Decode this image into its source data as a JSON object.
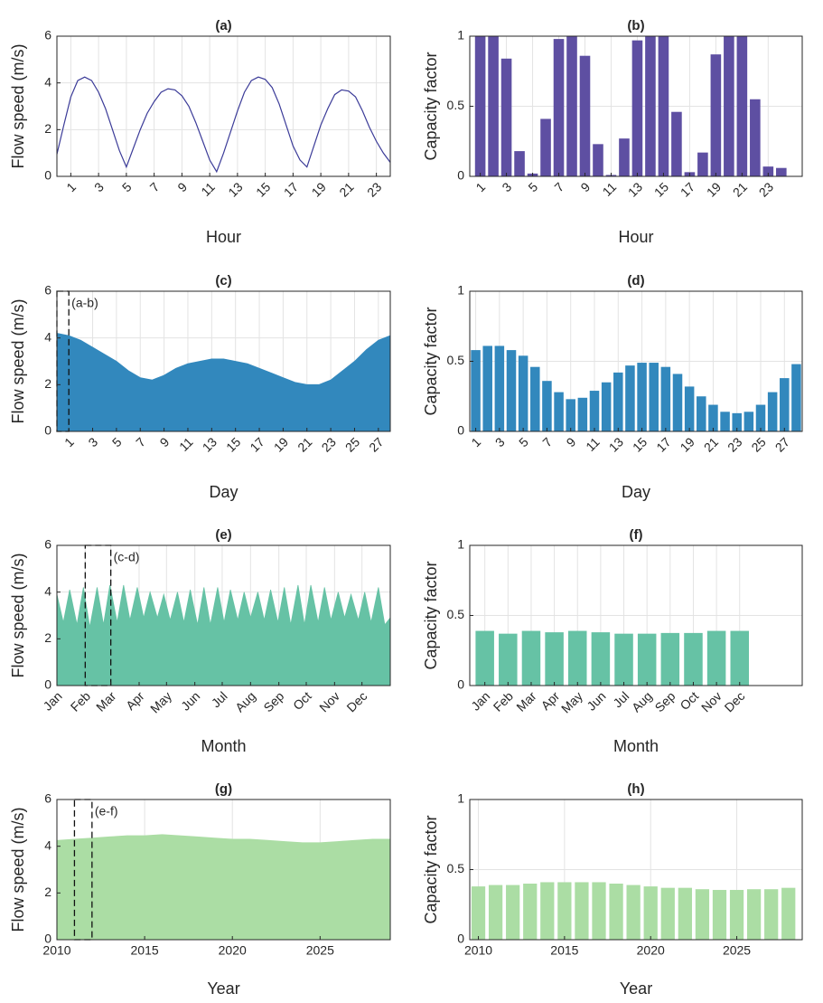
{
  "chart_data": [
    {
      "type": "line",
      "title": "(a)",
      "xlabel": "Hour",
      "ylabel": "Flow speed (m/s)",
      "color": "#3b3b98",
      "x": [
        0,
        0.5,
        1,
        1.5,
        2,
        2.5,
        3,
        3.5,
        4,
        4.5,
        5,
        5.5,
        6,
        6.5,
        7,
        7.5,
        8,
        8.5,
        9,
        9.5,
        10,
        10.5,
        11,
        11.5,
        12,
        12.5,
        13,
        13.5,
        14,
        14.5,
        15,
        15.5,
        16,
        16.5,
        17,
        17.5,
        18,
        18.5,
        19,
        19.5,
        20,
        20.5,
        21,
        21.5,
        22,
        22.5,
        23,
        23.5,
        24
      ],
      "values": [
        0.95,
        2.2,
        3.4,
        4.1,
        4.25,
        4.1,
        3.6,
        2.9,
        2.0,
        1.1,
        0.4,
        1.2,
        2.0,
        2.7,
        3.2,
        3.6,
        3.75,
        3.7,
        3.45,
        3.0,
        2.3,
        1.5,
        0.7,
        0.2,
        1.0,
        1.9,
        2.8,
        3.6,
        4.1,
        4.25,
        4.15,
        3.8,
        3.1,
        2.2,
        1.3,
        0.7,
        0.4,
        1.3,
        2.2,
        2.9,
        3.5,
        3.7,
        3.65,
        3.4,
        2.8,
        2.1,
        1.5,
        1.0,
        0.6
      ],
      "xlim": [
        0,
        24
      ],
      "ylim": [
        0,
        6
      ],
      "xticks": [
        1,
        3,
        5,
        7,
        9,
        11,
        13,
        15,
        17,
        19,
        21,
        23
      ],
      "yticks": [
        0,
        2,
        4,
        6
      ],
      "xtick_rotation": 45,
      "grid": true
    },
    {
      "type": "bar",
      "title": "(b)",
      "xlabel": "Hour",
      "ylabel": "Capacity factor",
      "color": "#5e4fa2",
      "x": [
        1,
        2,
        3,
        4,
        5,
        6,
        7,
        8,
        9,
        10,
        11,
        12,
        13,
        14,
        15,
        16,
        17,
        18,
        19,
        20,
        21,
        22,
        23,
        24
      ],
      "values": [
        1.0,
        1.0,
        0.84,
        0.18,
        0.02,
        0.41,
        0.98,
        1.0,
        0.86,
        0.23,
        0.01,
        0.27,
        0.97,
        1.0,
        1.0,
        0.46,
        0.03,
        0.17,
        0.87,
        1.0,
        1.0,
        0.55,
        0.07,
        0.06
      ],
      "xlim": [
        0.2,
        25.6
      ],
      "ylim": [
        0,
        1
      ],
      "xticks": [
        1,
        3,
        5,
        7,
        9,
        11,
        13,
        15,
        17,
        19,
        21,
        23
      ],
      "yticks": [
        0,
        0.5,
        1
      ],
      "xtick_rotation": 45,
      "grid": true
    },
    {
      "type": "area",
      "title": "(c)",
      "xlabel": "Day",
      "ylabel": "Flow speed (m/s)",
      "color": "#3288bd",
      "x": [
        0,
        1,
        2,
        3,
        4,
        5,
        6,
        7,
        8,
        9,
        10,
        11,
        12,
        13,
        14,
        15,
        16,
        17,
        18,
        19,
        20,
        21,
        22,
        23,
        24,
        25,
        26,
        27,
        28
      ],
      "values": [
        4.2,
        4.1,
        3.9,
        3.6,
        3.3,
        3.0,
        2.6,
        2.3,
        2.2,
        2.4,
        2.7,
        2.9,
        3.0,
        3.1,
        3.1,
        3.0,
        2.9,
        2.7,
        2.5,
        2.3,
        2.1,
        2.0,
        2.0,
        2.2,
        2.6,
        3.0,
        3.5,
        3.9,
        4.1
      ],
      "xlim": [
        0,
        28
      ],
      "ylim": [
        0,
        6
      ],
      "xticks": [
        1,
        3,
        5,
        7,
        9,
        11,
        13,
        15,
        17,
        19,
        21,
        23,
        25,
        27
      ],
      "yticks": [
        0,
        2,
        4,
        6
      ],
      "xtick_rotation": 45,
      "grid": true,
      "annotation": {
        "text": "(a-b)",
        "x": [
          0,
          1
        ]
      }
    },
    {
      "type": "bar",
      "title": "(d)",
      "xlabel": "Day",
      "ylabel": "Capacity factor",
      "color": "#3288bd",
      "x": [
        1,
        2,
        3,
        4,
        5,
        6,
        7,
        8,
        9,
        10,
        11,
        12,
        13,
        14,
        15,
        16,
        17,
        18,
        19,
        20,
        21,
        22,
        23,
        24,
        25,
        26,
        27,
        28
      ],
      "values": [
        0.58,
        0.61,
        0.61,
        0.58,
        0.54,
        0.46,
        0.36,
        0.28,
        0.23,
        0.24,
        0.29,
        0.35,
        0.42,
        0.47,
        0.49,
        0.49,
        0.46,
        0.41,
        0.32,
        0.25,
        0.19,
        0.14,
        0.13,
        0.14,
        0.19,
        0.28,
        0.38,
        0.48
      ],
      "xlim": [
        0.5,
        28.5
      ],
      "ylim": [
        0,
        1
      ],
      "xticks": [
        1,
        3,
        5,
        7,
        9,
        11,
        13,
        15,
        17,
        19,
        21,
        23,
        25,
        27
      ],
      "yticks": [
        0,
        0.5,
        1
      ],
      "xtick_rotation": 45,
      "grid": true
    },
    {
      "type": "area",
      "title": "(e)",
      "xlabel": "Month",
      "ylabel": "Flow speed (m/s)",
      "color": "#66c2a5",
      "x": [
        1,
        8,
        15,
        23,
        30,
        37,
        45,
        52,
        59,
        67,
        74,
        81,
        89,
        96,
        103,
        111,
        118,
        125,
        133,
        140,
        147,
        155,
        162,
        169,
        177,
        184,
        191,
        199,
        206,
        213,
        221,
        228,
        235,
        243,
        250,
        257,
        265,
        272,
        279,
        287,
        294,
        301,
        309,
        316,
        323,
        331,
        338,
        345,
        353,
        360,
        366
      ],
      "values": [
        3.9,
        2.7,
        4.1,
        2.6,
        4.2,
        2.5,
        4.2,
        2.6,
        4.3,
        2.7,
        4.3,
        2.8,
        4.2,
        2.9,
        4.0,
        2.9,
        3.9,
        2.8,
        4.0,
        2.7,
        4.1,
        2.6,
        4.2,
        2.6,
        4.2,
        2.7,
        4.1,
        2.8,
        4.0,
        2.9,
        4.0,
        2.8,
        4.1,
        2.7,
        4.2,
        2.6,
        4.3,
        2.6,
        4.3,
        2.7,
        4.2,
        2.8,
        4.0,
        2.9,
        3.9,
        2.8,
        4.0,
        2.7,
        4.2,
        2.6,
        2.9
      ],
      "xlim": [
        1,
        366
      ],
      "ylim": [
        0,
        6
      ],
      "xticks": [
        {
          "value": 1,
          "label": "Jan"
        },
        {
          "value": 32,
          "label": "Feb"
        },
        {
          "value": 60,
          "label": "Mar"
        },
        {
          "value": 91,
          "label": "Apr"
        },
        {
          "value": 121,
          "label": "May"
        },
        {
          "value": 152,
          "label": "Jun"
        },
        {
          "value": 182,
          "label": "Jul"
        },
        {
          "value": 213,
          "label": "Aug"
        },
        {
          "value": 244,
          "label": "Sep"
        },
        {
          "value": 274,
          "label": "Oct"
        },
        {
          "value": 305,
          "label": "Nov"
        },
        {
          "value": 335,
          "label": "Dec"
        }
      ],
      "yticks": [
        0,
        2,
        4,
        6
      ],
      "xtick_rotation": 45,
      "grid": true,
      "annotation": {
        "text": "(c-d)",
        "x": [
          32,
          60
        ]
      }
    },
    {
      "type": "bar",
      "title": "(f)",
      "xlabel": "Month",
      "ylabel": "Capacity factor",
      "color": "#66c2a5",
      "x": [
        1,
        2,
        3,
        4,
        5,
        6,
        7,
        8,
        9,
        10,
        11,
        12
      ],
      "values": [
        0.39,
        0.37,
        0.39,
        0.38,
        0.39,
        0.38,
        0.37,
        0.37,
        0.375,
        0.375,
        0.39,
        0.39
      ],
      "xlim": [
        0.35,
        14.7
      ],
      "ylim": [
        0,
        1
      ],
      "xticks": [
        {
          "value": 1,
          "label": "Jan"
        },
        {
          "value": 2,
          "label": "Feb"
        },
        {
          "value": 3,
          "label": "Mar"
        },
        {
          "value": 4,
          "label": "Apr"
        },
        {
          "value": 5,
          "label": "May"
        },
        {
          "value": 6,
          "label": "Jun"
        },
        {
          "value": 7,
          "label": "Jul"
        },
        {
          "value": 8,
          "label": "Aug"
        },
        {
          "value": 9,
          "label": "Sep"
        },
        {
          "value": 10,
          "label": "Oct"
        },
        {
          "value": 11,
          "label": "Nov"
        },
        {
          "value": 12,
          "label": "Dec"
        }
      ],
      "yticks": [
        0,
        0.5,
        1
      ],
      "xtick_rotation": 45,
      "grid": true
    },
    {
      "type": "area",
      "title": "(g)",
      "xlabel": "Year",
      "ylabel": "Flow speed (m/s)",
      "color": "#abdda4",
      "x": [
        2010,
        2011,
        2012,
        2013,
        2014,
        2015,
        2016,
        2017,
        2018,
        2019,
        2020,
        2021,
        2022,
        2023,
        2024,
        2025,
        2026,
        2027,
        2028,
        2029
      ],
      "values": [
        4.25,
        4.3,
        4.35,
        4.4,
        4.45,
        4.45,
        4.5,
        4.45,
        4.4,
        4.35,
        4.3,
        4.3,
        4.25,
        4.2,
        4.15,
        4.15,
        4.2,
        4.25,
        4.3,
        4.3
      ],
      "xlim": [
        2010,
        2029
      ],
      "ylim": [
        0,
        6
      ],
      "xticks": [
        2010,
        2015,
        2020,
        2025
      ],
      "yticks": [
        0,
        2,
        4,
        6
      ],
      "grid": true,
      "annotation": {
        "text": "(e-f)",
        "x": [
          2011,
          2012
        ]
      }
    },
    {
      "type": "bar",
      "title": "(h)",
      "xlabel": "Year",
      "ylabel": "Capacity factor",
      "color": "#abdda4",
      "x": [
        2010,
        2011,
        2012,
        2013,
        2014,
        2015,
        2016,
        2017,
        2018,
        2019,
        2020,
        2021,
        2022,
        2023,
        2024,
        2025,
        2026,
        2027,
        2028
      ],
      "values": [
        0.38,
        0.39,
        0.39,
        0.4,
        0.41,
        0.41,
        0.41,
        0.41,
        0.4,
        0.39,
        0.38,
        0.37,
        0.37,
        0.36,
        0.355,
        0.355,
        0.36,
        0.36,
        0.37
      ],
      "xlim": [
        2009.5,
        2028.8
      ],
      "ylim": [
        0,
        1
      ],
      "xticks": [
        2010,
        2015,
        2020,
        2025
      ],
      "yticks": [
        0,
        0.5,
        1
      ],
      "grid": true
    }
  ]
}
